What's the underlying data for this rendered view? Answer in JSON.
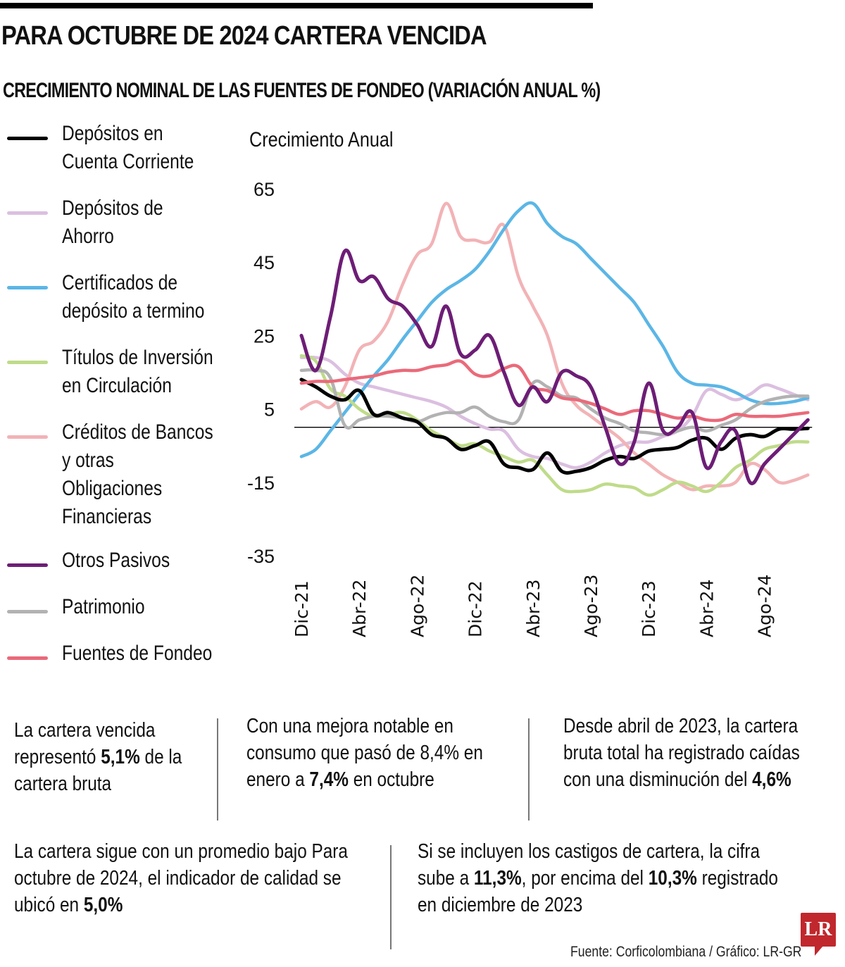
{
  "header": {
    "title": "PARA OCTUBRE DE 2024 CARTERA VENCIDA",
    "subtitle": "CRECIMIENTO NOMINAL DE LAS FUENTES DE FONDEO (VARIACIÓN ANUAL %)"
  },
  "chart_data": {
    "type": "line",
    "title": "CRECIMIENTO NOMINAL DE LAS FUENTES DE FONDEO (VARIACIÓN ANUAL %)",
    "ylabel": "Crecimiento Anual",
    "xlabel": "",
    "ylim": [
      -35,
      65
    ],
    "yticks": [
      65,
      45,
      25,
      5,
      -15,
      -35
    ],
    "xtick_labels": [
      "Dic-21",
      "Abr-22",
      "Ago-22",
      "Dic-22",
      "Abr-23",
      "Ago-23",
      "Dic-23",
      "Abr-24",
      "Ago-24"
    ],
    "xtick_index": [
      0,
      4,
      8,
      12,
      16,
      20,
      24,
      28,
      32
    ],
    "x": [
      "Dic-21",
      "Ene-22",
      "Feb-22",
      "Mar-22",
      "Abr-22",
      "May-22",
      "Jun-22",
      "Jul-22",
      "Ago-22",
      "Sep-22",
      "Oct-22",
      "Nov-22",
      "Dic-22",
      "Ene-23",
      "Feb-23",
      "Mar-23",
      "Abr-23",
      "May-23",
      "Jun-23",
      "Jul-23",
      "Ago-23",
      "Sep-23",
      "Oct-23",
      "Nov-23",
      "Dic-23",
      "Ene-24",
      "Feb-24",
      "Mar-24",
      "Abr-24",
      "May-24",
      "Jun-24",
      "Jul-24",
      "Ago-24",
      "Sep-24",
      "Oct-24",
      "Nov-24"
    ],
    "zero_line": true,
    "grid": false,
    "legend_position": "left",
    "series": [
      {
        "name": "Depósitos en Cuenta Corriente",
        "color": "#000000",
        "values": [
          13,
          11,
          8.5,
          7.5,
          10,
          3.5,
          4,
          2.5,
          1.5,
          -2,
          -3,
          -6,
          -5,
          -4,
          -10,
          -11,
          -11.5,
          -7,
          -12,
          -12,
          -11,
          -9,
          -8,
          -8.5,
          -6.5,
          -6,
          -5.5,
          -3.5,
          -3,
          -6,
          -3,
          -2,
          -2.5,
          -0.5,
          -0.5,
          -0.3
        ]
      },
      {
        "name": "Depósitos de Ahorro",
        "color": "#dbbfe0",
        "values": [
          19,
          19,
          18,
          14.5,
          12,
          11,
          10,
          9,
          8,
          7,
          5.5,
          3,
          1,
          -0.5,
          -1,
          -6,
          -8,
          -8.5,
          -10,
          -11,
          -9.5,
          -7,
          -5,
          -4,
          -4,
          -2.5,
          -1,
          3,
          10,
          9,
          7.5,
          9,
          11.5,
          10.5,
          9,
          7.5
        ]
      },
      {
        "name": "Certificados de depósito a termino",
        "color": "#5bb6e6",
        "values": [
          -8,
          -6,
          -1,
          4,
          9,
          14,
          18.5,
          24,
          29,
          34,
          37.5,
          40,
          43,
          48,
          54,
          59,
          61,
          55.5,
          52,
          50,
          46,
          42,
          38,
          34,
          28,
          22,
          15,
          12,
          11.5,
          11,
          9.5,
          7.5,
          6.5,
          6.5,
          7,
          8
        ]
      },
      {
        "name": "Títulos de Inversión en Circulación",
        "color": "#bfdb8a",
        "values": [
          19.5,
          18,
          10.5,
          8.5,
          5,
          3,
          3.5,
          4,
          2,
          -1,
          -3,
          -5,
          -4.5,
          -6.5,
          -8,
          -9.5,
          -9,
          -13,
          -17,
          -17.5,
          -17,
          -15.5,
          -16,
          -16.5,
          -18.5,
          -17,
          -15,
          -16,
          -17.5,
          -15,
          -11,
          -9,
          -6,
          -5,
          -4,
          -4
        ]
      },
      {
        "name": "Créditos de Bancos y otras Obligaciones Financieras",
        "color": "#f2b3b6",
        "values": [
          5,
          7,
          5.5,
          11,
          21,
          23.5,
          29,
          39,
          47,
          50,
          61,
          52,
          51,
          50.5,
          55,
          41,
          33,
          25,
          12,
          6,
          3,
          0,
          -3,
          -7,
          -10,
          -13,
          -15,
          -17,
          -16,
          -16,
          -15,
          -10,
          -11.5,
          -15,
          -14.5,
          -13
        ]
      },
      {
        "name": "Otros Pasivos",
        "color": "#6d1d76",
        "values": [
          25,
          15.5,
          30,
          48,
          40,
          41,
          35,
          33,
          28,
          22,
          33,
          20,
          21,
          25,
          15,
          6,
          11,
          7,
          15,
          14,
          11,
          0,
          -10,
          -4,
          12,
          -1,
          0,
          4,
          -11,
          -4,
          -1,
          -15,
          -10,
          -6,
          -2,
          2
        ]
      },
      {
        "name": "Patrimonio",
        "color": "#b2b2b2",
        "values": [
          15.5,
          15.5,
          13.5,
          0.5,
          2,
          3,
          3,
          2.5,
          1.5,
          3,
          4,
          4,
          5.5,
          3,
          1.5,
          2,
          12,
          11,
          8.5,
          8,
          5,
          2.5,
          1,
          -1,
          -1.5,
          -2,
          -1,
          0,
          -1,
          0.5,
          2,
          5,
          7,
          8,
          8.5,
          8.5
        ]
      },
      {
        "name": "Fuentes de Fondeo",
        "color": "#ea6a7a",
        "values": [
          12,
          12.5,
          12.5,
          13,
          13.5,
          14,
          15,
          15.5,
          15.5,
          16.5,
          17,
          18,
          14.5,
          14,
          16,
          16.5,
          11,
          10,
          8,
          7.5,
          6.5,
          5,
          3.5,
          4.5,
          4.5,
          3.5,
          2.5,
          3,
          2,
          2,
          3.5,
          3,
          3,
          3,
          3.5,
          4
        ]
      }
    ]
  },
  "legend": {
    "items": [
      {
        "label_lines": [
          "Depósitos en",
          "Cuenta Corriente"
        ]
      },
      {
        "label_lines": [
          "Depósitos de",
          "Ahorro"
        ]
      },
      {
        "label_lines": [
          "Certificados de",
          "depósito a termino"
        ]
      },
      {
        "label_lines": [
          "Títulos de Inversión",
          "en Circulación"
        ]
      },
      {
        "label_lines": [
          "Créditos de Bancos",
          "y otras",
          "Obligaciones",
          "Financieras"
        ]
      },
      {
        "label_lines": [
          "Otros Pasivos"
        ]
      },
      {
        "label_lines": [
          "Patrimonio"
        ]
      },
      {
        "label_lines": [
          "Fuentes de Fondeo"
        ]
      }
    ]
  },
  "notes": {
    "n1": {
      "pre": "La cartera vencida representó ",
      "bold": "5,1%",
      "post": " de la cartera bruta"
    },
    "n2": {
      "pre": "Con una mejora notable en consumo que pasó de 8,4% en enero a ",
      "bold": "7,4%",
      "post": " en octubre"
    },
    "n3": {
      "pre": "Desde abril de 2023, la cartera bruta total ha registrado caídas con una disminución del ",
      "bold": "4,6%",
      "post": ""
    },
    "n4": {
      "pre": "La cartera sigue con un promedio bajo Para octubre de 2024, el indicador de calidad se ubicó en ",
      "bold": "5,0%",
      "post": ""
    },
    "n5": {
      "pre": "Si se incluyen los castigos de cartera, la cifra sube a ",
      "bold": "11,3%",
      "mid": ", por encima del ",
      "bold2": "10,3%",
      "post": " registrado en diciembre de 2023"
    }
  },
  "footer": {
    "source": "Fuente: Corficolombiana / Gráfico: LR-GR",
    "logo_text": "LR",
    "logo_color": "#c0282d"
  }
}
